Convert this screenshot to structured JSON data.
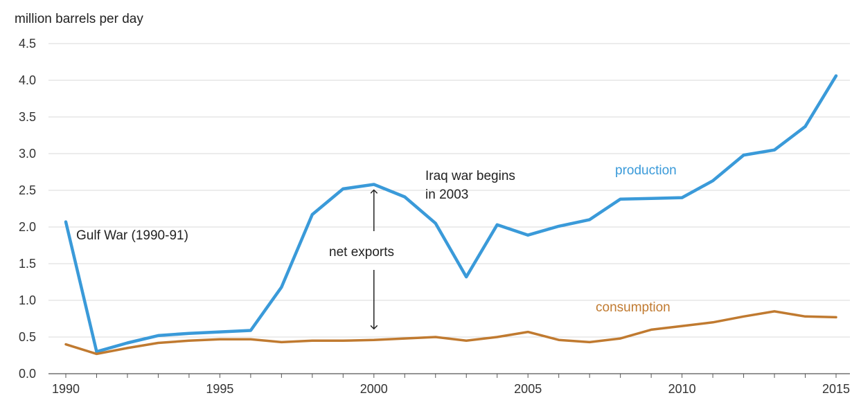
{
  "chart_data": {
    "type": "line",
    "title": "",
    "ylabel": "million barrels per day",
    "xlabel": "",
    "ylim": [
      0,
      4.5
    ],
    "yticks": [
      "0.0",
      "0.5",
      "1.0",
      "1.5",
      "2.0",
      "2.5",
      "3.0",
      "3.5",
      "4.0",
      "4.5"
    ],
    "xlim": [
      1990,
      2015
    ],
    "xticks": [
      "1990",
      "1995",
      "2000",
      "2005",
      "2010",
      "2015"
    ],
    "grid": true,
    "x": [
      1990,
      1991,
      1992,
      1993,
      1994,
      1995,
      1996,
      1997,
      1998,
      1999,
      2000,
      2001,
      2002,
      2003,
      2004,
      2005,
      2006,
      2007,
      2008,
      2009,
      2010,
      2011,
      2012,
      2013,
      2014,
      2015
    ],
    "series": [
      {
        "name": "production",
        "color": "#3a9ad9",
        "values": [
          2.07,
          0.3,
          0.42,
          0.52,
          0.55,
          0.57,
          0.59,
          1.18,
          2.17,
          2.52,
          2.58,
          2.41,
          2.05,
          1.32,
          2.03,
          1.89,
          2.01,
          2.1,
          2.38,
          2.39,
          2.4,
          2.63,
          2.98,
          3.05,
          3.37,
          4.06
        ]
      },
      {
        "name": "consumption",
        "color": "#c07a30",
        "values": [
          0.4,
          0.27,
          0.35,
          0.42,
          0.45,
          0.47,
          0.47,
          0.43,
          0.45,
          0.45,
          0.46,
          0.48,
          0.5,
          0.45,
          0.5,
          0.57,
          0.46,
          0.43,
          0.48,
          0.6,
          0.65,
          0.7,
          0.78,
          0.85,
          0.78,
          0.77
        ]
      }
    ],
    "annotations": {
      "gulf_war": "Gulf War (1990-91)",
      "iraq_war_line1": "Iraq war begins",
      "iraq_war_line2": "in 2003",
      "net_exports": "net exports"
    },
    "net_exports_arrow": {
      "x": 2000,
      "from": 2.58,
      "to": 0.46
    }
  }
}
